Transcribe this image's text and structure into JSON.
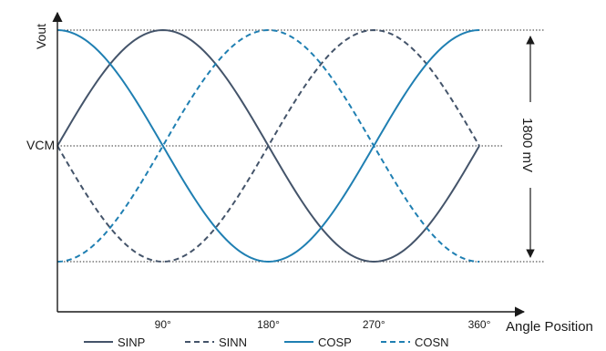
{
  "chart_data": {
    "type": "line",
    "title": "",
    "xlabel": "Angle Position",
    "ylabel": "Vout",
    "x_ticks": [
      90,
      180,
      270,
      360
    ],
    "x_tick_labels": [
      "90°",
      "180°",
      "270°",
      "360°"
    ],
    "xlim": [
      0,
      360
    ],
    "ylim": [
      -1,
      1
    ],
    "reference_lines": [
      {
        "y": 1
      },
      {
        "y": 0,
        "label": "VCM"
      },
      {
        "y": -1
      }
    ],
    "span_annotation": {
      "label": "1800 mV",
      "from": -1,
      "to": 1
    },
    "legend_position": "bottom",
    "series": [
      {
        "name": "SINP",
        "function": "sin",
        "phase_deg": 0,
        "amplitude": 1,
        "style": "solid",
        "color": "#44546a"
      },
      {
        "name": "SINN",
        "function": "sin",
        "phase_deg": 180,
        "amplitude": 1,
        "style": "dashed",
        "color": "#44546a"
      },
      {
        "name": "COSP",
        "function": "cos",
        "phase_deg": 0,
        "amplitude": 1,
        "style": "solid",
        "color": "#1f7fb2"
      },
      {
        "name": "COSN",
        "function": "cos",
        "phase_deg": 180,
        "amplitude": 1,
        "style": "dashed",
        "color": "#1f7fb2"
      }
    ]
  }
}
